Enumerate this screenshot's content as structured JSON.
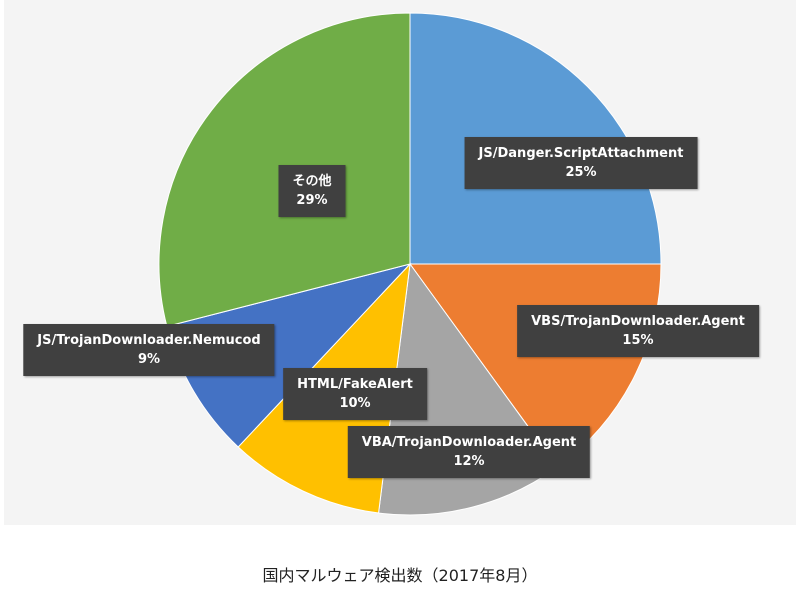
{
  "chart_data": {
    "type": "pie",
    "title": "国内マルウェア検出数（2017年8月）",
    "slices": [
      {
        "label": "JS/Danger.ScriptAttachment",
        "value": 25,
        "display": "25%",
        "color": "#5b9bd5"
      },
      {
        "label": "VBS/TrojanDownloader.Agent",
        "value": 15,
        "display": "15%",
        "color": "#ed7d31"
      },
      {
        "label": "VBA/TrojanDownloader.Agent",
        "value": 12,
        "display": "12%",
        "color": "#a5a5a5"
      },
      {
        "label": "HTML/FakeAlert",
        "value": 10,
        "display": "10%",
        "color": "#ffc000"
      },
      {
        "label": "JS/TrojanDownloader.Nemucod",
        "value": 9,
        "display": "9%",
        "color": "#4472c4"
      },
      {
        "label": "その他",
        "value": 29,
        "display": "29%",
        "color": "#70ad47"
      }
    ]
  }
}
